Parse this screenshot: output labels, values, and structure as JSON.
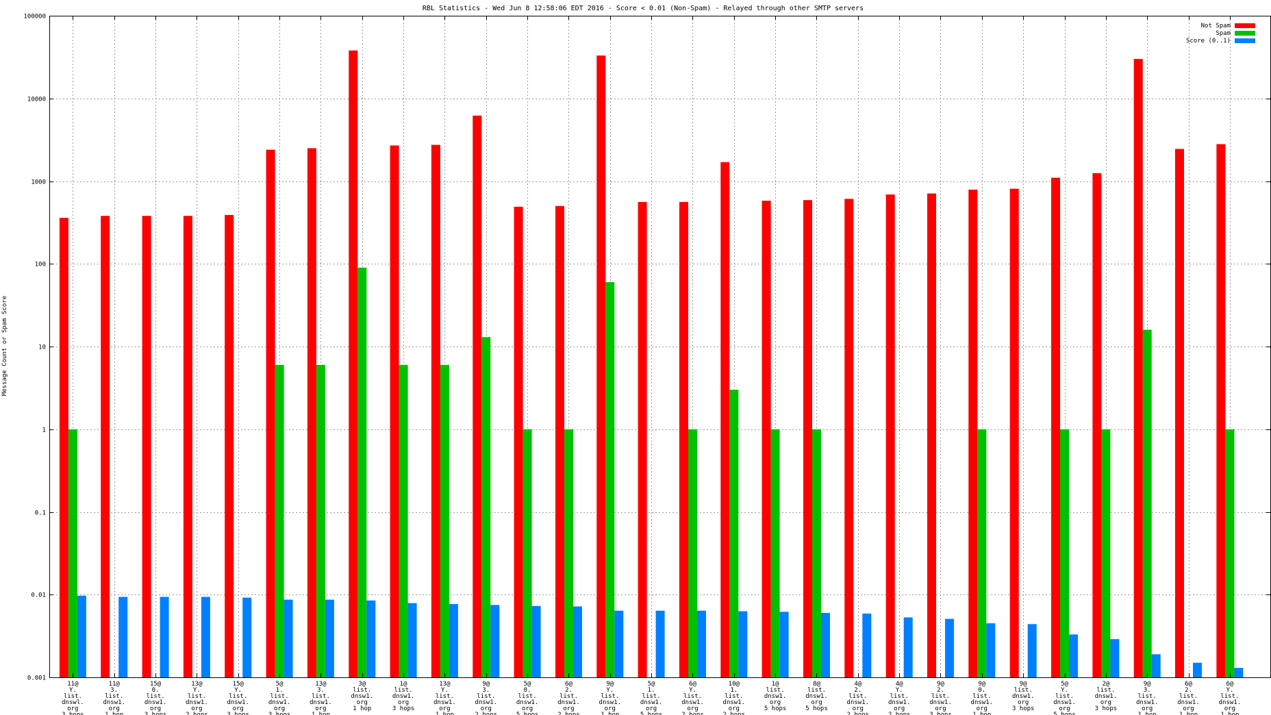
{
  "chart_data": {
    "type": "bar",
    "title": "RBL Statistics - Wed Jun  8 12:58:06 EDT 2016 - Score < 0.01 (Non-Spam) - Relayed through other SMTP servers",
    "xlabel": "",
    "ylabel": "Message Count or Spam Score",
    "yscale": "log",
    "ylim": [
      0.001,
      100000
    ],
    "yticks": [
      "100000",
      "10000",
      "1000",
      "100",
      "10",
      "1",
      "0.1",
      "0.01",
      "0.001"
    ],
    "grid": true,
    "legend_position": "top-right",
    "categories": [
      [
        "11@",
        "Y.",
        "list.",
        "dnswl.",
        "org",
        "3 hops"
      ],
      [
        "11@",
        "3.",
        "list.",
        "dnsw1.",
        "org",
        "1 hop"
      ],
      [
        "15@",
        "0.",
        "list.",
        "dnsw1.",
        "org",
        "3 hops"
      ],
      [
        "13@",
        "Y.",
        "list.",
        "dnsw1.",
        "org",
        "2 hops"
      ],
      [
        "15@",
        "Y.",
        "list.",
        "dnsw1.",
        "org",
        "3 hops"
      ],
      [
        "5@",
        "1.",
        "list.",
        "dnsw1.",
        "org",
        "3 hops"
      ],
      [
        "13@",
        "3.",
        "list.",
        "dnsw1.",
        "org",
        "1 hop"
      ],
      [
        "3@",
        "list.",
        "dnsw1.",
        "org",
        "1 hop"
      ],
      [
        "1@",
        "list.",
        "dnsw1.",
        "org",
        "3 hops"
      ],
      [
        "13@",
        "Y.",
        "list.",
        "dnsw1.",
        "org",
        "1 hop"
      ],
      [
        "9@",
        "3.",
        "list.",
        "dnsw1.",
        "org",
        "2 hops"
      ],
      [
        "5@",
        "0.",
        "list.",
        "dnsw1.",
        "org",
        "5 hops"
      ],
      [
        "6@",
        "2.",
        "list.",
        "dnsw1.",
        "org",
        "2 hops"
      ],
      [
        "9@",
        "Y.",
        "list.",
        "dnsw1.",
        "org",
        "1 hop"
      ],
      [
        "5@",
        "1.",
        "list.",
        "dnsw1.",
        "org",
        "5 hops"
      ],
      [
        "6@",
        "Y.",
        "list.",
        "dnsw1.",
        "org",
        "2 hops"
      ],
      [
        "10@",
        "1.",
        "list.",
        "dnsw1.",
        "org",
        "2 hops"
      ],
      [
        "1@",
        "list.",
        "dnsw1.",
        "org",
        "5 hops"
      ],
      [
        "8@",
        "list.",
        "dnsw1.",
        "org",
        "5 hops"
      ],
      [
        "4@",
        "2.",
        "list.",
        "dnsw1.",
        "org",
        "2 hops"
      ],
      [
        "4@",
        "Y.",
        "list.",
        "dnsw1.",
        "org",
        "2 hops"
      ],
      [
        "9@",
        "2.",
        "list.",
        "dnsw1.",
        "org",
        "3 hops"
      ],
      [
        "9@",
        "0.",
        "list.",
        "dnsw1.",
        "org",
        "1 hop"
      ],
      [
        "9@",
        "list.",
        "dnsw1.",
        "org",
        "3 hops"
      ],
      [
        "5@",
        "Y.",
        "list.",
        "dnsw1.",
        "org",
        "5 hops"
      ],
      [
        "2@",
        "list.",
        "dnsw1.",
        "org",
        "3 hops"
      ],
      [
        "9@",
        "3.",
        "list.",
        "dnsw1.",
        "org",
        "1 hop"
      ],
      [
        "6@",
        "2.",
        "list.",
        "dnsw1.",
        "org",
        "1 hop"
      ],
      [
        "6@",
        "Y.",
        "list.",
        "dnsw1.",
        "org",
        "1 hop"
      ]
    ],
    "series": [
      {
        "name": "Not Spam",
        "color": "#ff0000",
        "values": [
          360,
          380,
          380,
          380,
          390,
          2400,
          2500,
          38000,
          2700,
          2750,
          6200,
          490,
          500,
          33000,
          560,
          560,
          1700,
          580,
          590,
          610,
          690,
          710,
          790,
          810,
          1100,
          1250,
          30000,
          2450,
          2800
        ]
      },
      {
        "name": "Spam",
        "color": "#00c000",
        "values": [
          1,
          0,
          0,
          0,
          0,
          6,
          6,
          90,
          6,
          6,
          13,
          1,
          1,
          60,
          0,
          1,
          3,
          1,
          1,
          0,
          0,
          0,
          1,
          0,
          1,
          1,
          16,
          0,
          1
        ]
      },
      {
        "name": "Score (0..1)",
        "color": "#0080ff",
        "values": [
          0.0097,
          0.0094,
          0.0094,
          0.0094,
          0.0092,
          0.0087,
          0.0087,
          0.0085,
          0.0079,
          0.0077,
          0.0075,
          0.0073,
          0.0072,
          0.0064,
          0.0064,
          0.0064,
          0.0063,
          0.0062,
          0.006,
          0.0059,
          0.0053,
          0.0051,
          0.0045,
          0.0044,
          0.0033,
          0.0029,
          0.0019,
          0.0015,
          0.0013
        ]
      }
    ]
  }
}
